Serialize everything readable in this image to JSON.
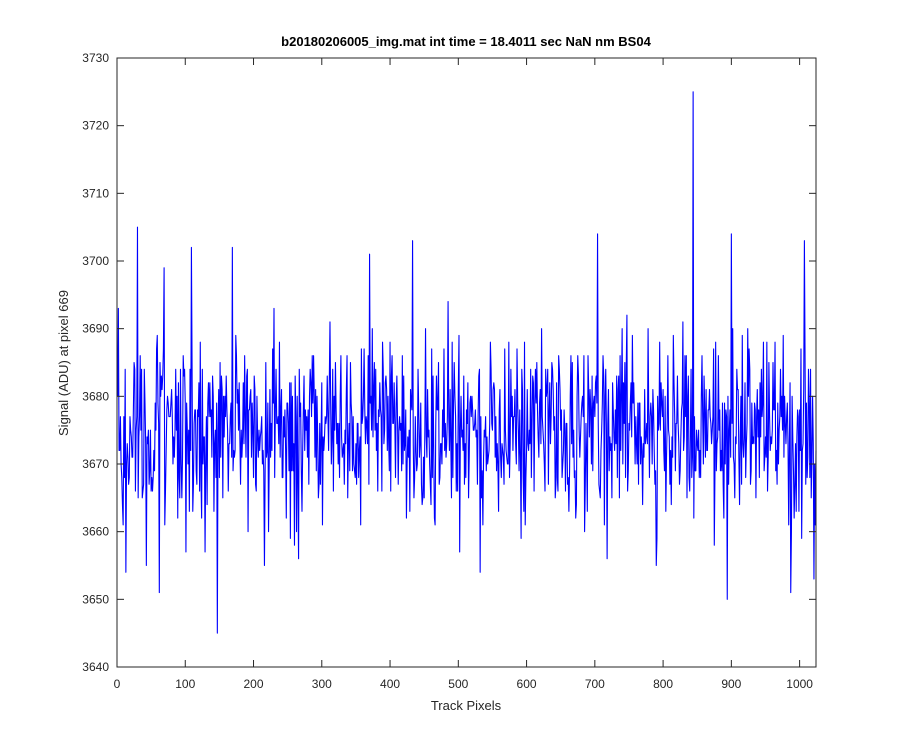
{
  "chart_data": {
    "type": "line",
    "title": "b20180206005_img.mat int time = 18.4011 sec  NaN nm BS04",
    "xlabel": "Track Pixels",
    "ylabel": "Signal (ADU) at pixel 669",
    "xlim": [
      0,
      1024
    ],
    "ylim": [
      3640,
      3730
    ],
    "xticks": [
      0,
      100,
      200,
      300,
      400,
      500,
      600,
      700,
      800,
      900,
      1000
    ],
    "yticks": [
      3640,
      3650,
      3660,
      3670,
      3680,
      3690,
      3700,
      3710,
      3720,
      3730
    ],
    "grid": false,
    "box": true,
    "line_color": "#0000ff",
    "n_points": 1024,
    "baseline_mean": 3675,
    "noise_range": [
      3655,
      3695
    ],
    "notable_points": [
      {
        "x": 1,
        "y": 3693
      },
      {
        "x": 12,
        "y": 3654
      },
      {
        "x": 29,
        "y": 3705
      },
      {
        "x": 42,
        "y": 3655
      },
      {
        "x": 61,
        "y": 3651
      },
      {
        "x": 68,
        "y": 3699
      },
      {
        "x": 108,
        "y": 3702
      },
      {
        "x": 146,
        "y": 3645
      },
      {
        "x": 168,
        "y": 3702
      },
      {
        "x": 215,
        "y": 3655
      },
      {
        "x": 265,
        "y": 3656
      },
      {
        "x": 369,
        "y": 3701
      },
      {
        "x": 432,
        "y": 3703
      },
      {
        "x": 531,
        "y": 3654
      },
      {
        "x": 703,
        "y": 3704
      },
      {
        "x": 717,
        "y": 3656
      },
      {
        "x": 789,
        "y": 3655
      },
      {
        "x": 843,
        "y": 3725
      },
      {
        "x": 893,
        "y": 3650
      },
      {
        "x": 899,
        "y": 3704
      },
      {
        "x": 986,
        "y": 3651
      },
      {
        "x": 1006,
        "y": 3703
      },
      {
        "x": 1020,
        "y": 3653
      }
    ]
  }
}
